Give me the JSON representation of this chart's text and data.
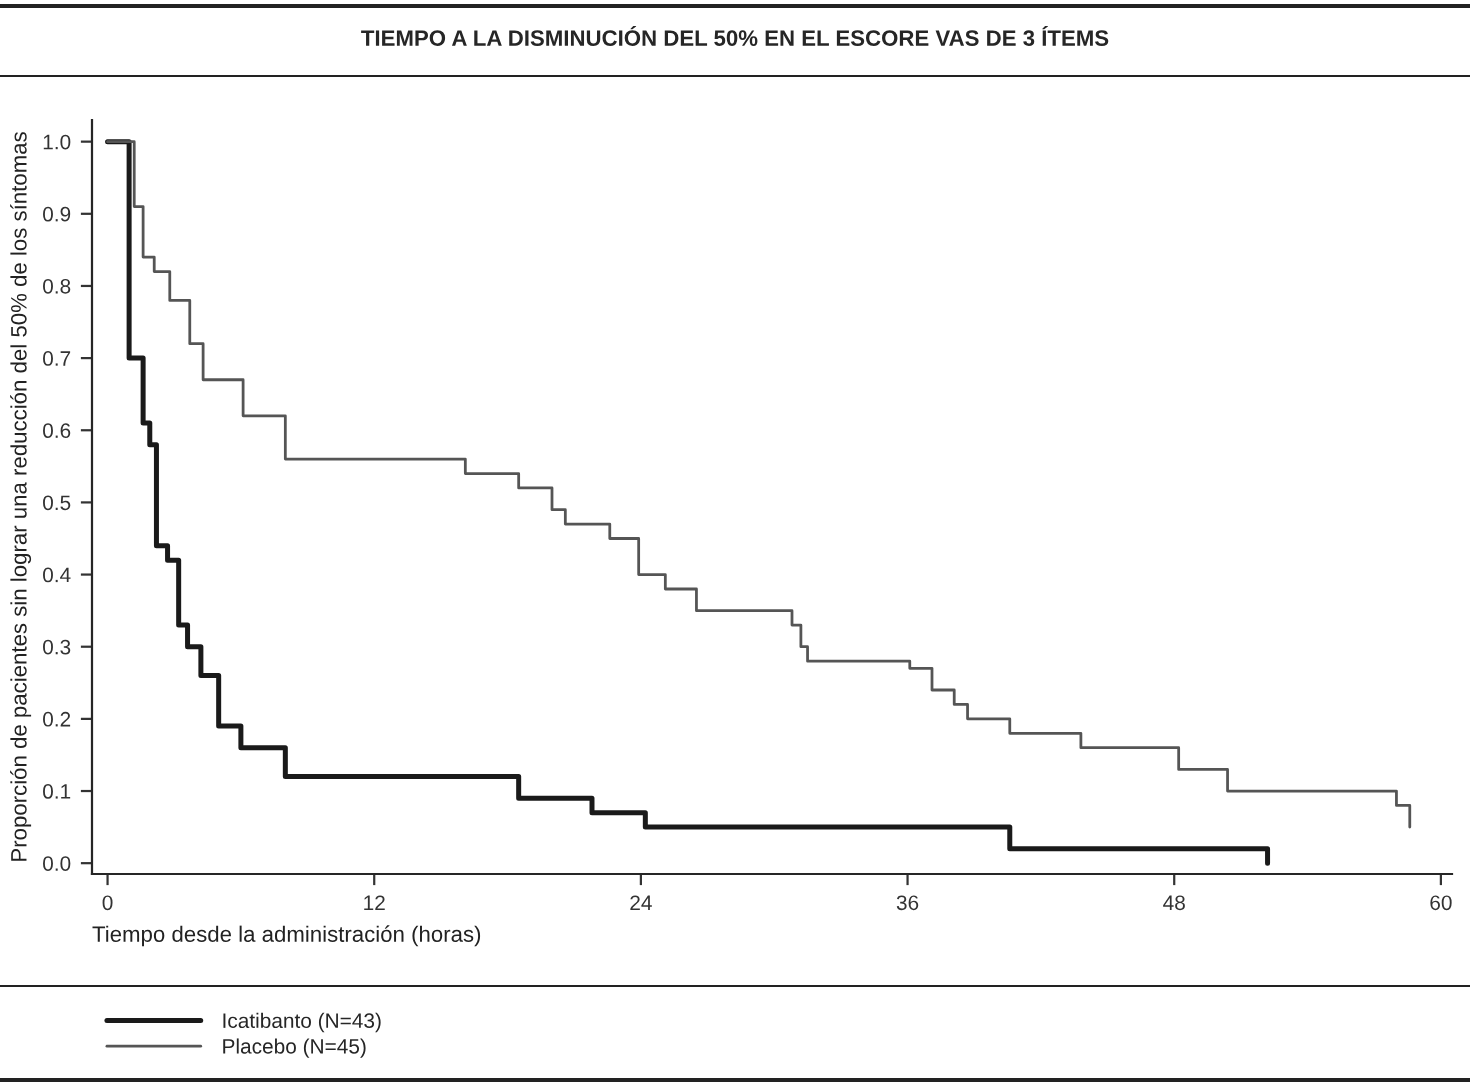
{
  "chart_data": {
    "type": "step",
    "title": "TIEMPO A LA DISMINUCIÓN DEL 50% EN EL ESCORE VAS DE 3 ÍTEMS",
    "xlabel": "Tiempo desde la administración (horas)",
    "ylabel": "Proporción de pacientes sin lograr una reducción del 50% de los síntomas",
    "series": [
      {
        "name": "Icatibanto (N=43)",
        "color": "#1a1a1a",
        "x": [
          0,
          0.97,
          1.6,
          1.9,
          2.2,
          2.7,
          3.2,
          3.6,
          4.2,
          5.0,
          6.0,
          8.0,
          18.5,
          21.8,
          24.2,
          40.6,
          52.2,
          52.2
        ],
        "values": [
          1.0,
          0.7,
          0.61,
          0.58,
          0.44,
          0.42,
          0.33,
          0.3,
          0.26,
          0.19,
          0.16,
          0.12,
          0.09,
          0.07,
          0.05,
          0.02,
          0.02,
          0.0
        ]
      },
      {
        "name": "Placebo (N=45)",
        "color": "#555555",
        "x": [
          0,
          1.2,
          1.6,
          2.1,
          2.8,
          3.7,
          4.3,
          6.1,
          8.0,
          16.1,
          18.5,
          20.0,
          20.6,
          22.6,
          23.9,
          25.1,
          26.5,
          30.8,
          31.2,
          31.5,
          36.1,
          37.1,
          38.1,
          38.7,
          40.6,
          43.8,
          48.2,
          50.4,
          58.0,
          58.6,
          58.6
        ],
        "values": [
          1.0,
          0.91,
          0.84,
          0.82,
          0.78,
          0.72,
          0.67,
          0.62,
          0.56,
          0.54,
          0.52,
          0.49,
          0.47,
          0.45,
          0.4,
          0.38,
          0.35,
          0.33,
          0.3,
          0.28,
          0.27,
          0.24,
          0.22,
          0.2,
          0.18,
          0.16,
          0.13,
          0.1,
          0.08,
          0.08,
          0.05
        ]
      }
    ],
    "xlim": [
      -0.7,
      60.5
    ],
    "xticks": [
      0,
      12,
      24,
      36,
      48,
      60
    ],
    "ylim": [
      -0.015,
      1.03
    ],
    "yticks": [
      {
        "value": 0,
        "label": "0.0"
      },
      0.1,
      0.2,
      0.3,
      0.4,
      0.5,
      0.6,
      0.7,
      0.8,
      0.9,
      {
        "value": 1,
        "label": "1.0"
      }
    ],
    "grid": false,
    "legend": "bottom left",
    "line_style": "solid"
  }
}
